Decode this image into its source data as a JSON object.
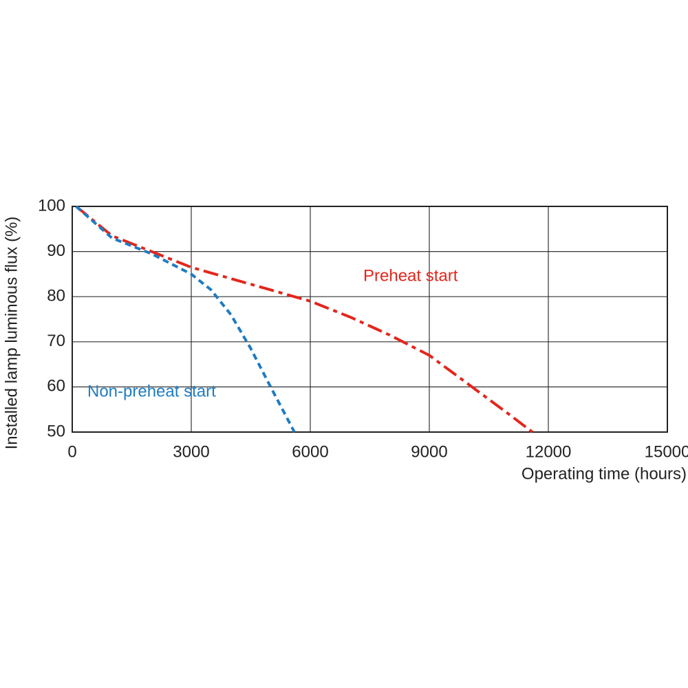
{
  "chart_data": {
    "type": "line",
    "xlabel": "Operating time (hours)",
    "ylabel": "Installed lamp luminous flux  (%)",
    "xlim": [
      0,
      15000
    ],
    "xticks": [
      0,
      3000,
      6000,
      9000,
      12000,
      15000
    ],
    "ylim": [
      50,
      100
    ],
    "yticks": [
      50,
      60,
      70,
      80,
      90,
      100
    ],
    "grid": true,
    "series": [
      {
        "name": "Preheat start",
        "color": "#e3261b",
        "linestyle": "dashdot",
        "x": [
          100,
          1000,
          2000,
          3000,
          4000,
          5000,
          6000,
          7000,
          8000,
          9000,
          10000,
          11000,
          11600
        ],
        "values": [
          100,
          93.5,
          90,
          86.5,
          84,
          81.5,
          79,
          75.5,
          71.5,
          67,
          60.5,
          54,
          50
        ]
      },
      {
        "name": "Non-preheat start",
        "color": "#1f7cc1",
        "linestyle": "dashed",
        "x": [
          100,
          1000,
          2000,
          3000,
          3500,
          4000,
          4500,
          5000,
          5300,
          5600
        ],
        "values": [
          100,
          93,
          89.5,
          85,
          81.5,
          76,
          68.5,
          60,
          55,
          50
        ]
      }
    ]
  }
}
